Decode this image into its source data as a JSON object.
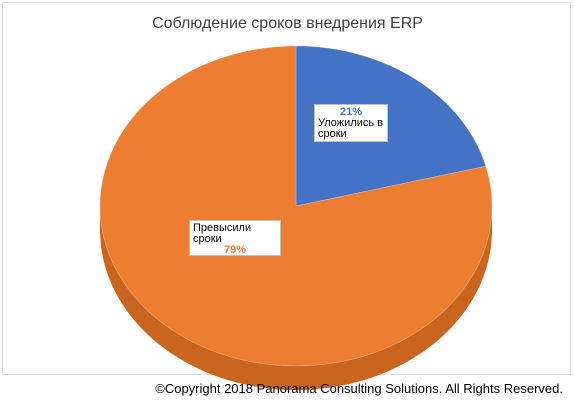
{
  "chart_data": {
    "type": "pie",
    "title": "Соблюдение сроков внедрения ERP",
    "slices": [
      {
        "name": "Уложились в сроки",
        "value": 21,
        "label": "21%",
        "color": "#4472c4",
        "side_color": "#3a62a8"
      },
      {
        "name": "Превысили сроки",
        "value": 79,
        "label": "79%",
        "color": "#ed7d31",
        "side_color": "#c9651f"
      }
    ],
    "style": "3d"
  },
  "footer": {
    "copyright": "©Copyright 2018 Panorama Consulting Solutions.  All Rights Reserved."
  }
}
